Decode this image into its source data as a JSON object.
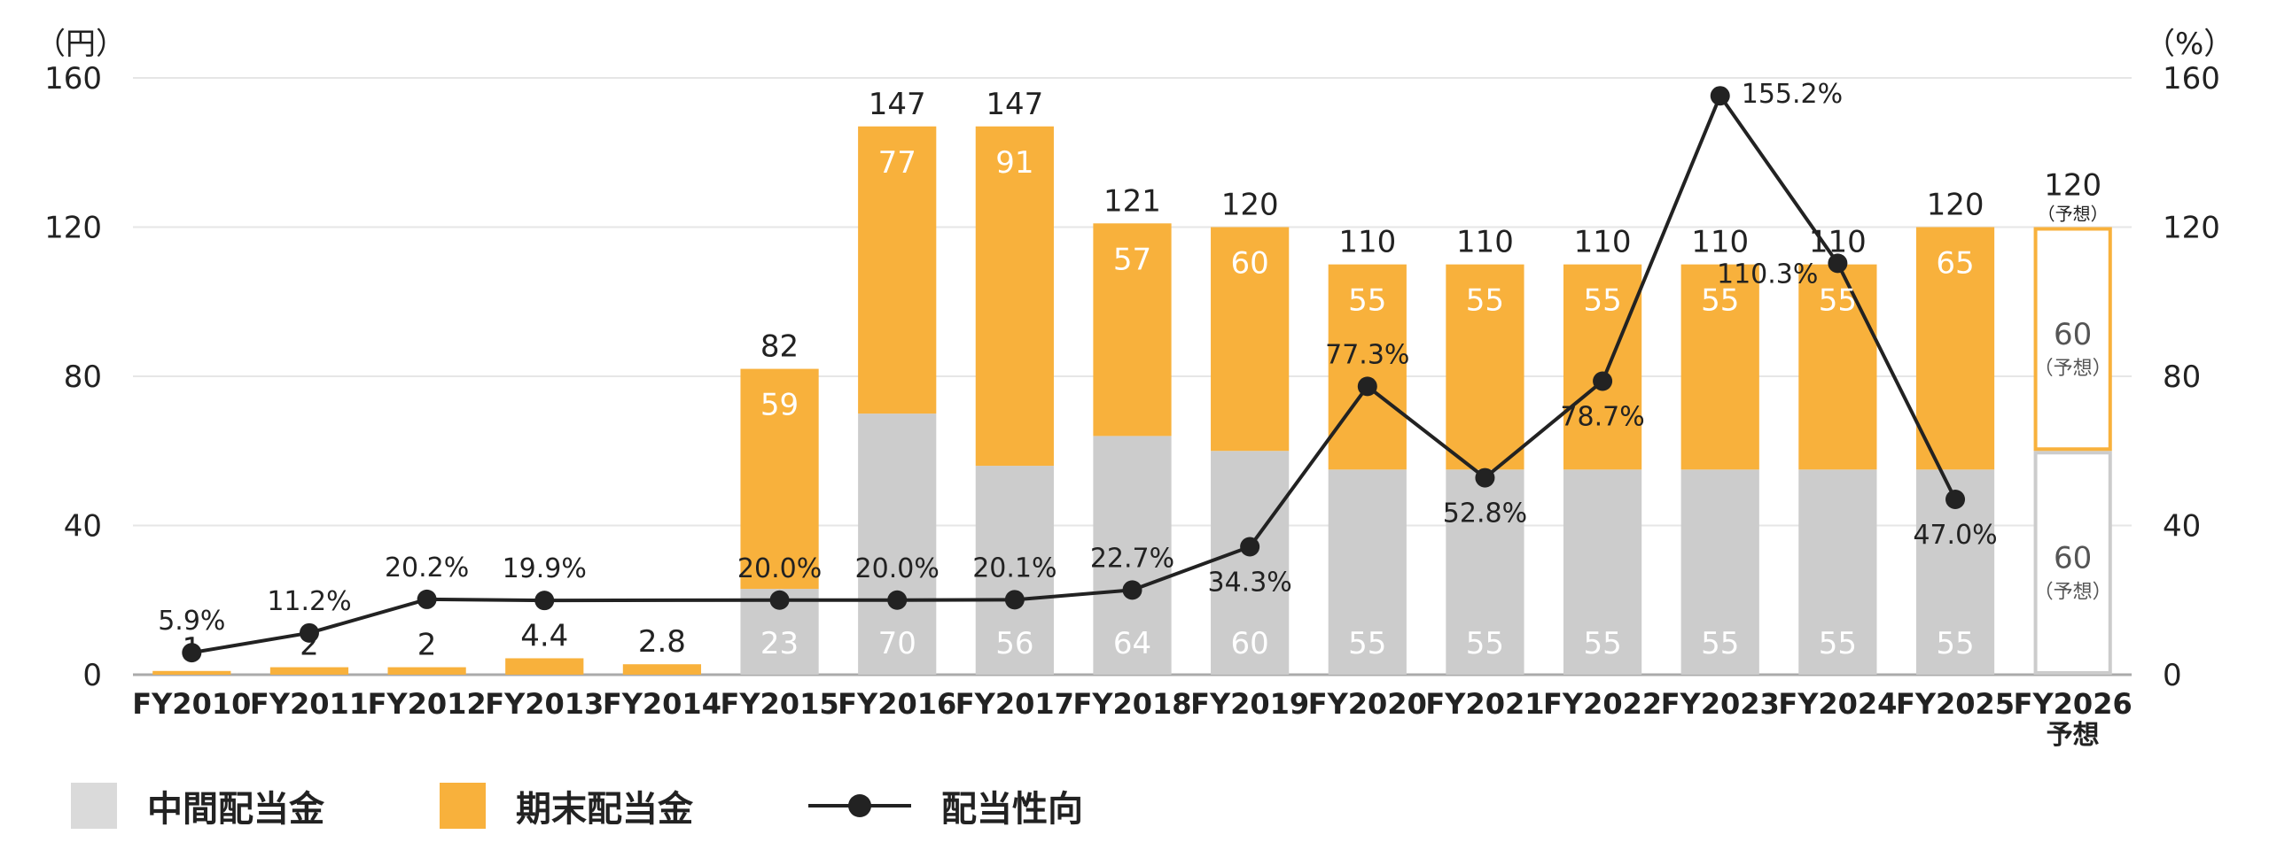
{
  "chart_data": {
    "type": "bar",
    "stacked": true,
    "left_axis_unit": "（円）",
    "right_axis_unit": "（%）",
    "ylim": [
      0,
      160
    ],
    "y_ticks": [
      "0",
      "40",
      "80",
      "120",
      "160"
    ],
    "y2lim": [
      0,
      160
    ],
    "y2_ticks": [
      "0",
      "40",
      "80",
      "120",
      "160"
    ],
    "grid": true,
    "categories": [
      "FY2010",
      "FY2011",
      "FY2012",
      "FY2013",
      "FY2014",
      "FY2015",
      "FY2016",
      "FY2017",
      "FY2018",
      "FY2019",
      "FY2020",
      "FY2021",
      "FY2022",
      "FY2023",
      "FY2024",
      "FY2025",
      "FY2026"
    ],
    "category_sublabels": [
      "",
      "",
      "",
      "",
      "",
      "",
      "",
      "",
      "",
      "",
      "",
      "",
      "",
      "",
      "",
      "",
      "予想"
    ],
    "series": [
      {
        "name": "中間配当金",
        "color": "#cccccc",
        "values": [
          0,
          0,
          0,
          0,
          0,
          23,
          70,
          56,
          64,
          60,
          55,
          55,
          55,
          55,
          55,
          55,
          60
        ],
        "labels": [
          "",
          "",
          "",
          "",
          "",
          "23",
          "70",
          "56",
          "64",
          "60",
          "55",
          "55",
          "55",
          "55",
          "55",
          "55",
          "60"
        ],
        "label_notes": [
          "",
          "",
          "",
          "",
          "",
          "",
          "",
          "",
          "",
          "",
          "",
          "",
          "",
          "",
          "",
          "",
          "（予想）"
        ]
      },
      {
        "name": "期末配当金",
        "color": "#f8b13c",
        "values": [
          1,
          2,
          2,
          4.4,
          2.8,
          59,
          77,
          91,
          57,
          60,
          55,
          55,
          55,
          55,
          55,
          65,
          60
        ],
        "labels": [
          "",
          "",
          "",
          "",
          "",
          "59",
          "77",
          "91",
          "57",
          "60",
          "55",
          "55",
          "55",
          "55",
          "55",
          "65",
          "60"
        ],
        "label_notes": [
          "",
          "",
          "",
          "",
          "",
          "",
          "",
          "",
          "",
          "",
          "",
          "",
          "",
          "",
          "",
          "",
          "（予想）"
        ]
      },
      {
        "name": "配当性向",
        "type": "line",
        "axis": "right",
        "color": "#222222",
        "values": [
          5.9,
          11.2,
          20.2,
          19.9,
          null,
          20.0,
          20.0,
          20.1,
          22.7,
          34.3,
          77.3,
          52.8,
          78.7,
          155.2,
          110.3,
          47.0,
          null
        ],
        "labels": [
          "5.9%",
          "11.2%",
          "20.2%",
          "19.9%",
          "",
          "20.0%",
          "20.0%",
          "20.1%",
          "22.7%",
          "34.3%",
          "77.3%",
          "52.8%",
          "78.7%",
          "155.2%",
          "110.3%",
          "47.0%",
          ""
        ],
        "label_side": [
          "above",
          "above",
          "above",
          "above",
          "above",
          "above",
          "above",
          "above",
          "above",
          "below",
          "above",
          "below",
          "below",
          "right",
          "left",
          "below",
          "above"
        ]
      }
    ],
    "totals": [
      "1",
      "2",
      "2",
      "4.4",
      "2.8",
      "82",
      "147",
      "147",
      "121",
      "120",
      "110",
      "110",
      "110",
      "110",
      "110",
      "120",
      "120"
    ],
    "total_notes": [
      "",
      "",
      "",
      "",
      "",
      "",
      "",
      "",
      "",
      "",
      "",
      "",
      "",
      "",
      "",
      "",
      "（予想）"
    ],
    "forecast_index": 16,
    "forecast_bar_fill": "#ffffff"
  },
  "legend": [
    {
      "label": "中間配当金",
      "kind": "swatch",
      "color": "#dadada"
    },
    {
      "label": "期末配当金",
      "kind": "swatch",
      "color": "#f8b13c"
    },
    {
      "label": "配当性向",
      "kind": "line",
      "color": "#222222"
    }
  ]
}
